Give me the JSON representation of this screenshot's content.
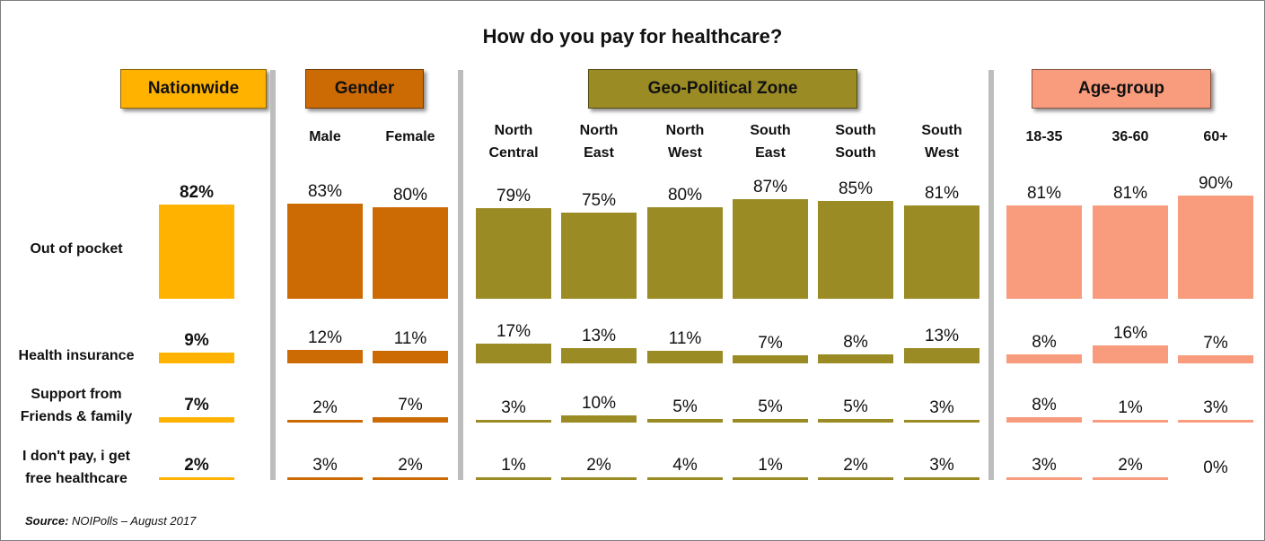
{
  "chart_data": {
    "type": "bar",
    "title": "How do you pay for healthcare?",
    "source": {
      "label": "Source:",
      "text": "NOIPolls – August 2017"
    },
    "groups": [
      {
        "name": "Nationwide",
        "color": "#FFB300",
        "categories": [
          ""
        ]
      },
      {
        "name": "Gender",
        "color": "#CC6A04",
        "categories": [
          "Male",
          "Female"
        ]
      },
      {
        "name": "Geo-Political Zone",
        "color": "#9A8B25",
        "categories": [
          "North\nCentral",
          "North\nEast",
          "North\nWest",
          "South\nEast",
          "South\nSouth",
          "South\nWest"
        ]
      },
      {
        "name": "Age-group",
        "color": "#F99B7D",
        "categories": [
          "18-35",
          "36-60",
          "60+"
        ]
      }
    ],
    "rows": [
      {
        "label": "Out of pocket",
        "values": [
          82,
          83,
          80,
          79,
          75,
          80,
          87,
          85,
          81,
          81,
          81,
          90
        ]
      },
      {
        "label": "Health insurance",
        "values": [
          9,
          12,
          11,
          17,
          13,
          11,
          7,
          8,
          13,
          8,
          16,
          7
        ]
      },
      {
        "label": "Support from\nFriends & family",
        "values": [
          7,
          2,
          7,
          3,
          10,
          5,
          5,
          5,
          3,
          8,
          1,
          3
        ]
      },
      {
        "label": "I don't pay, i get\nfree healthcare",
        "values": [
          2,
          3,
          2,
          1,
          2,
          4,
          1,
          2,
          3,
          3,
          2,
          0
        ]
      }
    ],
    "value_suffix": "%"
  }
}
